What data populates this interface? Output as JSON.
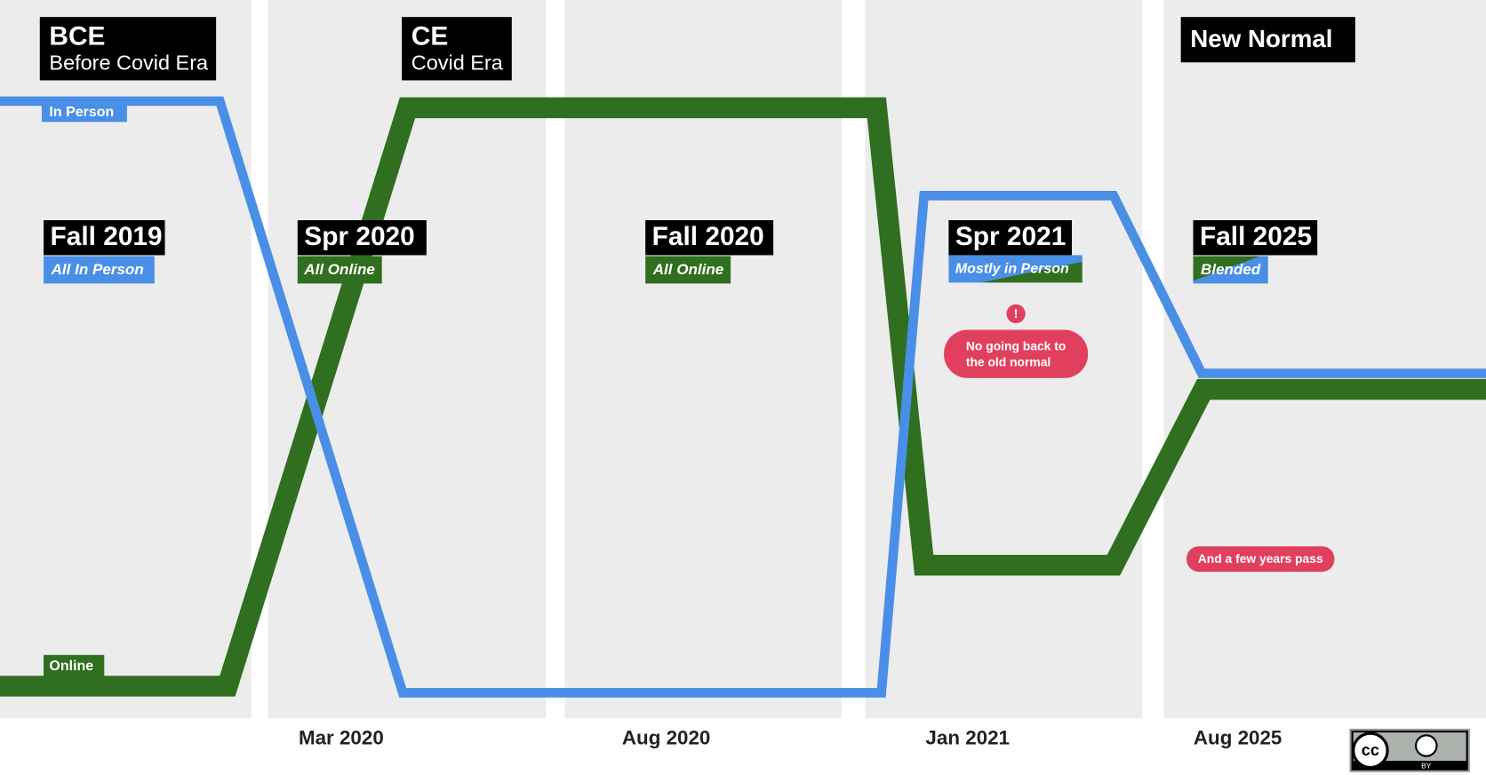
{
  "eras": [
    {
      "title": "BCE",
      "subtitle": "Before Covid Era"
    },
    {
      "title": "CE",
      "subtitle": "Covid Era"
    },
    {
      "title": "New Normal"
    }
  ],
  "lines": {
    "in_person": "In Person",
    "online": "Online"
  },
  "periods": [
    {
      "name": "Fall 2019",
      "mode": "All In Person"
    },
    {
      "name": "Spr 2020",
      "mode": "All Online"
    },
    {
      "name": "Fall 2020",
      "mode": "All Online"
    },
    {
      "name": "Spr 2021",
      "mode": "Mostly in Person"
    },
    {
      "name": "Fall 2025",
      "mode": "Blended"
    }
  ],
  "notes": {
    "alert": "!",
    "lines": [
      "No going back to",
      "the old normal"
    ],
    "passage": "And a few years pass"
  },
  "dates": [
    "Mar 2020",
    "Aug 2020",
    "Jan 2021",
    "Aug 2025"
  ],
  "license": {
    "mark": "cc",
    "label": "BY"
  }
}
